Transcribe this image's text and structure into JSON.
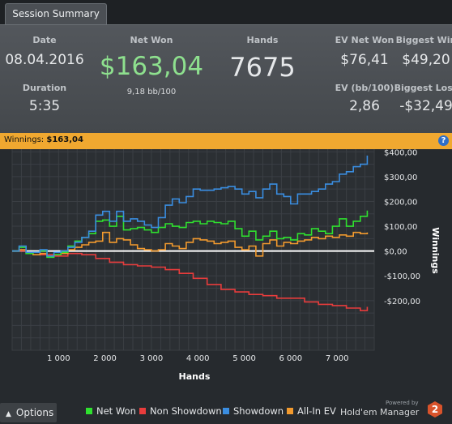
{
  "tab": {
    "label": "Session Summary"
  },
  "summary": {
    "date_label": "Date",
    "date_value": "08.04.2016",
    "duration_label": "Duration",
    "duration_value": "5:35",
    "net_won_label": "Net Won",
    "net_won_value": "$163,04",
    "net_won_bb": "9,18 bb/100",
    "hands_label": "Hands",
    "hands_value": "7675",
    "ev_net_won_label": "EV Net Won",
    "ev_net_won_value": "$76,41",
    "biggest_win_label": "Biggest Win",
    "biggest_win_value": "$49,20",
    "ev_bb_label": "EV (bb/100)",
    "ev_bb_value": "2,86",
    "biggest_loss_label": "Biggest Loss",
    "biggest_loss_value": "-$32,49"
  },
  "winbar": {
    "label": "Winnings:",
    "value": "$163,04",
    "help_icon": "?"
  },
  "colors": {
    "net_won": "#2fe02f",
    "non_showdown": "#e83c3c",
    "showdown": "#3a8de0",
    "all_in_ev": "#f29a2e",
    "net_won_text": "#8ee08e",
    "accent": "#f0a830"
  },
  "chart_data": {
    "type": "line",
    "xlabel": "Hands",
    "ylabel": "Winnings",
    "xlim": [
      0,
      7800
    ],
    "ylim": [
      -400,
      450
    ],
    "x_ticks": [
      1000,
      2000,
      3000,
      4000,
      5000,
      6000,
      7000
    ],
    "x_tick_labels": [
      "1 000",
      "2 000",
      "3 000",
      "4 000",
      "5 000",
      "6 000",
      "7 000"
    ],
    "y_ticks": [
      400,
      300,
      200,
      100,
      0,
      -100,
      -200
    ],
    "y_tick_labels": [
      "$400,00",
      "$300,00",
      "$200,00",
      "$100,00",
      "$0,00",
      "-$100,00",
      "-$200,00"
    ],
    "grid": true,
    "legend": "bottom",
    "series": [
      {
        "name": "Net Won",
        "color": "#2fe02f",
        "x": [
          0,
          150,
          300,
          450,
          600,
          750,
          900,
          1050,
          1200,
          1350,
          1500,
          1650,
          1800,
          1950,
          2100,
          2250,
          2400,
          2550,
          2700,
          2850,
          3000,
          3150,
          3300,
          3450,
          3600,
          3750,
          3900,
          4050,
          4200,
          4350,
          4500,
          4650,
          4800,
          4950,
          5100,
          5250,
          5400,
          5550,
          5700,
          5850,
          6000,
          6150,
          6300,
          6450,
          6600,
          6750,
          6900,
          7050,
          7200,
          7350,
          7500,
          7650
        ],
        "y": [
          0,
          15,
          -10,
          -5,
          0,
          -25,
          -15,
          -5,
          20,
          40,
          55,
          70,
          120,
          125,
          100,
          140,
          85,
          90,
          95,
          85,
          75,
          95,
          110,
          100,
          95,
          115,
          120,
          110,
          120,
          115,
          110,
          120,
          90,
          60,
          80,
          45,
          60,
          80,
          50,
          55,
          45,
          70,
          65,
          90,
          80,
          70,
          100,
          130,
          100,
          120,
          140,
          163
        ]
      },
      {
        "name": "Non Showdown",
        "color": "#e83c3c",
        "x": [
          0,
          300,
          600,
          900,
          1200,
          1500,
          1800,
          2100,
          2400,
          2700,
          3000,
          3300,
          3600,
          3900,
          4200,
          4500,
          4800,
          5100,
          5400,
          5700,
          6000,
          6300,
          6600,
          6900,
          7200,
          7500,
          7650
        ],
        "y": [
          0,
          -5,
          -15,
          -20,
          -10,
          -15,
          -30,
          -45,
          -55,
          -60,
          -65,
          -75,
          -90,
          -110,
          -135,
          -155,
          -165,
          -175,
          -180,
          -190,
          -190,
          -205,
          -215,
          -220,
          -230,
          -240,
          -225
        ]
      },
      {
        "name": "Showdown",
        "color": "#3a8de0",
        "x": [
          0,
          150,
          300,
          450,
          600,
          750,
          900,
          1050,
          1200,
          1350,
          1500,
          1650,
          1800,
          1950,
          2100,
          2250,
          2400,
          2550,
          2700,
          2850,
          3000,
          3150,
          3300,
          3450,
          3600,
          3750,
          3900,
          4050,
          4200,
          4350,
          4500,
          4650,
          4800,
          4950,
          5100,
          5250,
          5400,
          5550,
          5700,
          5850,
          6000,
          6150,
          6300,
          6450,
          6600,
          6750,
          6900,
          7050,
          7200,
          7350,
          7500,
          7650
        ],
        "y": [
          0,
          20,
          -5,
          -5,
          5,
          -20,
          -5,
          0,
          15,
          35,
          55,
          80,
          145,
          160,
          120,
          160,
          120,
          130,
          120,
          105,
          95,
          135,
          185,
          210,
          195,
          220,
          250,
          245,
          245,
          250,
          255,
          260,
          250,
          230,
          240,
          215,
          250,
          270,
          230,
          220,
          190,
          230,
          230,
          240,
          250,
          270,
          280,
          310,
          320,
          340,
          350,
          385
        ]
      },
      {
        "name": "All-In EV",
        "color": "#f29a2e",
        "x": [
          0,
          150,
          300,
          450,
          600,
          750,
          900,
          1050,
          1200,
          1350,
          1500,
          1650,
          1800,
          1950,
          2100,
          2250,
          2400,
          2550,
          2700,
          2850,
          3000,
          3150,
          3300,
          3450,
          3600,
          3750,
          3900,
          4050,
          4200,
          4350,
          4500,
          4650,
          4800,
          4950,
          5100,
          5250,
          5400,
          5550,
          5700,
          5850,
          6000,
          6150,
          6300,
          6450,
          6600,
          6750,
          6900,
          7050,
          7200,
          7350,
          7500,
          7650
        ],
        "y": [
          0,
          5,
          -10,
          -15,
          -10,
          -20,
          -15,
          -10,
          5,
          15,
          25,
          35,
          40,
          75,
          35,
          50,
          45,
          25,
          10,
          5,
          0,
          5,
          30,
          20,
          10,
          35,
          50,
          45,
          40,
          30,
          35,
          40,
          15,
          5,
          20,
          -20,
          30,
          45,
          20,
          35,
          30,
          40,
          45,
          55,
          50,
          60,
          55,
          65,
          60,
          75,
          70,
          75
        ]
      }
    ]
  },
  "bottom": {
    "options_label": "Options",
    "legend_net_won": "Net Won",
    "legend_non_showdown": "Non Showdown",
    "legend_showdown": "Showdown",
    "legend_all_in_ev": "All-In EV",
    "powered_by": "Powered by",
    "brand_name": "Hold'em Manager",
    "brand_number": "2"
  }
}
